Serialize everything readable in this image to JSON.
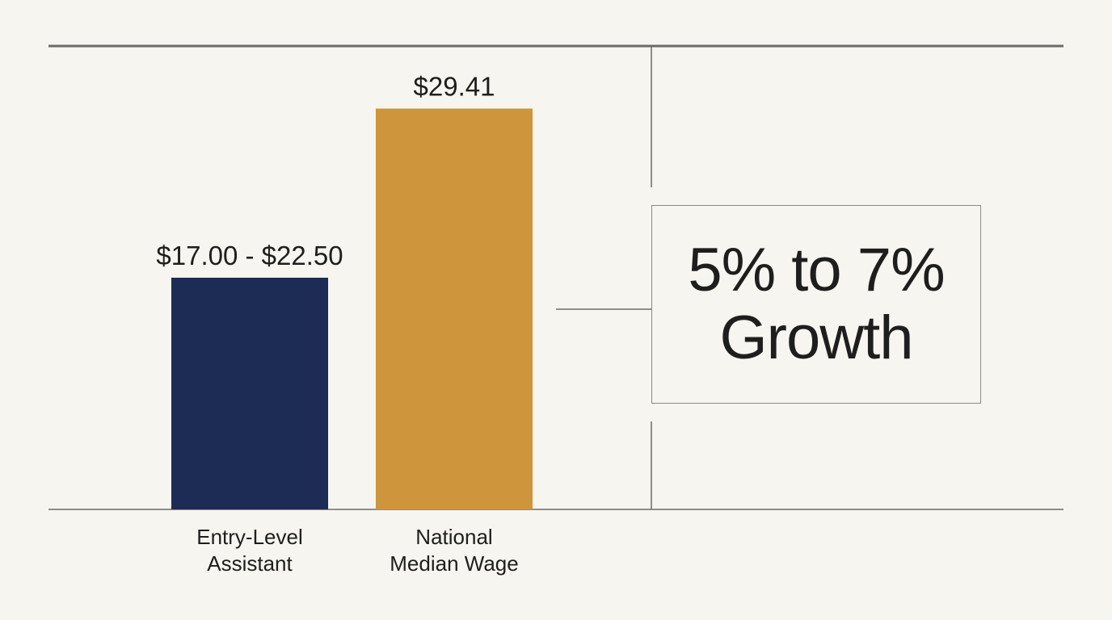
{
  "chart_data": {
    "type": "bar",
    "categories": [
      "Entry-Level\nAssistant",
      "National\nMedian Wage"
    ],
    "values": [
      {
        "low": 17.0,
        "high": 22.5
      },
      {
        "low": 29.41,
        "high": 29.41
      }
    ],
    "value_labels": [
      "$17.00 - $22.50",
      "$29.41"
    ],
    "colors": [
      "#1c2c55",
      "#cf953c"
    ],
    "ylim": [
      0,
      34
    ],
    "grid": false,
    "legend": "none"
  },
  "callout": {
    "line1": "5% to 7%",
    "line2": "Growth"
  }
}
